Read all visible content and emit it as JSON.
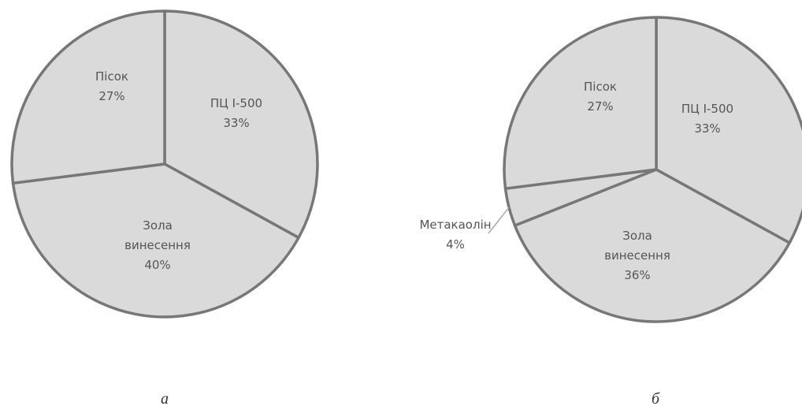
{
  "colors": {
    "fill": "#dadada",
    "stroke": "#777777",
    "text": "#555555",
    "leader": "#aaaaaa"
  },
  "chart_data": [
    {
      "type": "pie",
      "caption": "а",
      "slices": [
        {
          "label_lines": [
            "ПЦ І-500",
            "33%"
          ],
          "value": 33
        },
        {
          "label_lines": [
            "Зола",
            "винесення",
            "40%"
          ],
          "value": 40
        },
        {
          "label_lines": [
            "Пісок",
            "27%"
          ],
          "value": 27
        }
      ]
    },
    {
      "type": "pie",
      "caption": "б",
      "slices": [
        {
          "label_lines": [
            "ПЦ І-500",
            "33%"
          ],
          "value": 33
        },
        {
          "label_lines": [
            "Зола",
            "винесення",
            "36%"
          ],
          "value": 36
        },
        {
          "label_lines": [
            "Метакаолін",
            "4%"
          ],
          "value": 4
        },
        {
          "label_lines": [
            "Пісок",
            "27%"
          ],
          "value": 27
        }
      ]
    }
  ]
}
